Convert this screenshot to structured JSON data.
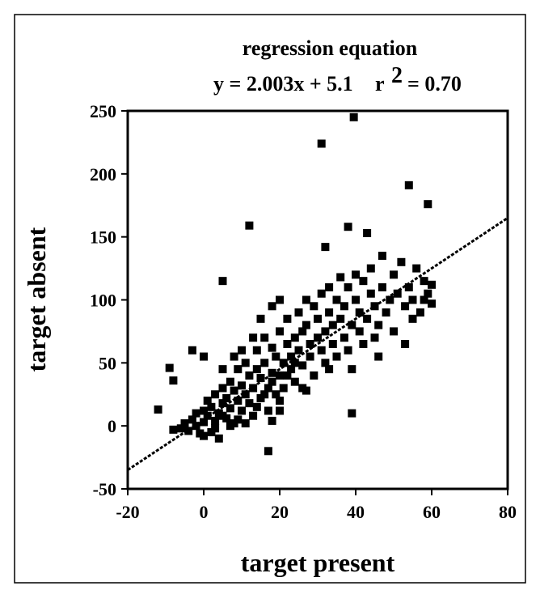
{
  "chart_data": {
    "type": "scatter",
    "title": "regression equation",
    "equation": "y = 2.003x + 5.1",
    "r_squared": {
      "symbol": "r",
      "power": "2",
      "value": "= 0.70"
    },
    "x_label": "target present",
    "y_label": "target absent",
    "color": "#000000",
    "xlim": [
      -20,
      80
    ],
    "xticks": [
      -20,
      0,
      20,
      40,
      60,
      80
    ],
    "ylim": [
      -50,
      250
    ],
    "yticks": [
      -50,
      0,
      50,
      100,
      150,
      200,
      250
    ],
    "regression_line": {
      "x": [
        -20,
        80
      ],
      "y": [
        -35,
        165
      ]
    },
    "x": [
      -8,
      -6,
      -5,
      -4,
      -3,
      -2,
      -2,
      -1,
      0,
      0,
      0,
      1,
      1,
      2,
      2,
      3,
      3,
      4,
      4,
      5,
      5,
      6,
      6,
      7,
      7,
      8,
      8,
      9,
      9,
      10,
      10,
      11,
      11,
      12,
      12,
      13,
      13,
      14,
      14,
      15,
      15,
      16,
      16,
      17,
      17,
      18,
      18,
      19,
      19,
      20,
      20,
      21,
      21,
      22,
      22,
      23,
      23,
      24,
      24,
      25,
      25,
      26,
      26,
      27,
      27,
      28,
      28,
      29,
      29,
      30,
      30,
      31,
      31,
      32,
      32,
      33,
      33,
      34,
      34,
      35,
      35,
      36,
      36,
      37,
      37,
      38,
      38,
      39,
      40,
      40,
      41,
      41,
      42,
      42,
      43,
      44,
      44,
      45,
      45,
      46,
      47,
      47,
      48,
      49,
      50,
      50,
      51,
      52,
      53,
      54,
      55,
      56,
      57,
      58,
      59,
      60,
      60,
      39.5,
      31,
      54,
      59,
      12,
      38,
      43,
      32,
      5,
      39,
      17,
      -12,
      -9,
      -8,
      -3,
      0,
      58,
      55,
      53,
      46,
      39,
      33,
      27,
      20,
      18,
      3,
      5,
      7,
      9,
      11,
      14,
      16,
      18,
      20,
      22,
      24,
      26,
      5,
      8,
      10,
      13,
      15,
      18,
      20
    ],
    "y": [
      -3,
      -2,
      2,
      -4,
      5,
      0,
      10,
      -6,
      3,
      12,
      -8,
      8,
      20,
      -5,
      15,
      4,
      25,
      10,
      -10,
      18,
      30,
      6,
      22,
      14,
      35,
      2,
      28,
      20,
      45,
      12,
      32,
      25,
      50,
      18,
      40,
      8,
      30,
      45,
      60,
      22,
      38,
      50,
      70,
      30,
      12,
      42,
      62,
      55,
      25,
      40,
      75,
      50,
      30,
      65,
      85,
      45,
      55,
      70,
      35,
      60,
      90,
      48,
      75,
      80,
      100,
      55,
      65,
      95,
      40,
      70,
      85,
      60,
      105,
      75,
      50,
      90,
      110,
      65,
      80,
      100,
      55,
      85,
      118,
      70,
      95,
      110,
      60,
      80,
      100,
      120,
      75,
      90,
      115,
      65,
      85,
      105,
      125,
      95,
      70,
      80,
      110,
      135,
      90,
      100,
      75,
      120,
      105,
      130,
      95,
      110,
      100,
      125,
      90,
      115,
      105,
      112,
      97,
      245,
      224,
      191,
      176,
      159,
      158,
      153,
      142,
      115,
      10,
      -20,
      13,
      46,
      36,
      60,
      55,
      100,
      85,
      65,
      55,
      45,
      45,
      28,
      12,
      4,
      -2,
      8,
      0,
      5,
      2,
      15,
      25,
      35,
      20,
      40,
      50,
      30,
      45,
      55,
      60,
      70,
      85,
      95,
      100
    ]
  }
}
